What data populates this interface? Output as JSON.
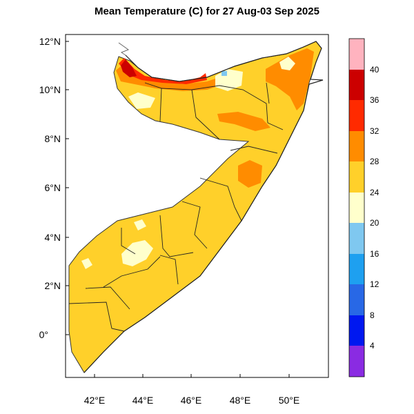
{
  "title": "Mean Temperature (C) for 27 Aug-03 Sep 2025",
  "map": {
    "region": "Somalia",
    "lat_ticks": [
      "12°N",
      "10°N",
      "8°N",
      "6°N",
      "4°N",
      "2°N",
      "0°"
    ],
    "lon_ticks": [
      "42°E",
      "44°E",
      "46°E",
      "48°E",
      "50°E"
    ],
    "lat_range": [
      -1.8,
      12.2
    ],
    "lon_range": [
      41.0,
      51.6
    ]
  },
  "colorbar": {
    "labels": [
      "40",
      "36",
      "32",
      "28",
      "24",
      "20",
      "16",
      "12",
      "8",
      "4"
    ],
    "colors": [
      "#ffb3bf",
      "#cc0000",
      "#ff2a00",
      "#ff8c00",
      "#ffd02a",
      "#ffffcc",
      "#7fc8f0",
      "#1ea0f0",
      "#2868e6",
      "#0018f0",
      "#1400b8",
      "#8a2be2"
    ]
  }
}
